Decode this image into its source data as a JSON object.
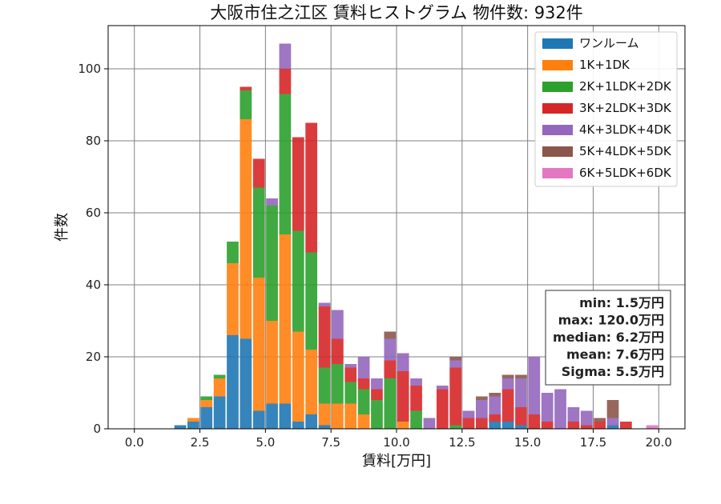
{
  "chart_data": {
    "type": "bar",
    "stacked": true,
    "title": "大阪市住之江区 賃料ヒストグラム  物件数: 932件",
    "xlabel": "賃料[万円]",
    "ylabel": "件数",
    "xlim": [
      -1.0,
      21.0
    ],
    "ylim": [
      0,
      112
    ],
    "xticks": [
      "0.0",
      "2.5",
      "5.0",
      "7.5",
      "10.0",
      "12.5",
      "15.0",
      "17.5",
      "20.0"
    ],
    "yticks": [
      "0",
      "20",
      "40",
      "60",
      "80",
      "100"
    ],
    "grid": true,
    "legend_position": "top-right",
    "bin_width": 0.5,
    "bins": [
      1.5,
      2.0,
      2.5,
      3.0,
      3.5,
      4.0,
      4.5,
      5.0,
      5.5,
      6.0,
      6.5,
      7.0,
      7.5,
      8.0,
      8.5,
      9.0,
      9.5,
      10.0,
      10.5,
      11.0,
      11.5,
      12.0,
      12.5,
      13.0,
      13.5,
      14.0,
      14.5,
      15.0,
      15.5,
      16.0,
      16.5,
      17.0,
      17.5,
      18.0,
      18.5,
      19.0,
      19.5
    ],
    "series": [
      {
        "name": "ワンルーム",
        "color": "#1f77b4",
        "values": [
          1,
          2,
          6,
          9,
          26,
          25,
          5,
          7,
          7,
          2,
          4,
          1,
          0,
          0,
          0,
          0,
          0,
          0,
          0,
          0,
          0,
          0,
          0,
          0,
          2,
          2,
          1,
          0,
          0,
          0,
          0,
          0,
          0,
          1,
          0,
          0,
          0
        ]
      },
      {
        "name": "1K+1DK",
        "color": "#ff7f0e",
        "values": [
          0,
          1,
          2,
          5,
          20,
          61,
          37,
          23,
          47,
          25,
          18,
          6,
          7,
          7,
          4,
          0,
          0,
          2,
          0,
          0,
          0,
          0,
          0,
          0,
          0,
          0,
          0,
          0,
          0,
          0,
          0,
          0,
          0,
          0,
          0,
          0,
          0
        ]
      },
      {
        "name": "2K+1LDK+2DK",
        "color": "#2ca02c",
        "values": [
          0,
          0,
          1,
          1,
          6,
          8,
          25,
          32,
          39,
          28,
          27,
          10,
          11,
          6,
          7,
          8,
          14,
          0,
          5,
          0,
          0,
          1,
          0,
          0,
          0,
          0,
          0,
          0,
          0,
          0,
          0,
          0,
          0,
          0,
          0,
          0,
          0
        ]
      },
      {
        "name": "3K+2LDK+3DK",
        "color": "#d62728",
        "values": [
          0,
          0,
          0,
          0,
          0,
          1,
          8,
          0,
          7,
          26,
          36,
          17,
          7,
          4,
          3,
          3,
          5,
          14,
          7,
          0,
          11,
          16,
          3,
          3,
          2,
          9,
          5,
          4,
          2,
          0,
          2,
          1,
          2,
          0,
          2,
          0,
          0
        ]
      },
      {
        "name": "4K+3LDK+4DK",
        "color": "#9467bd",
        "values": [
          0,
          0,
          0,
          0,
          0,
          0,
          0,
          2,
          7,
          0,
          0,
          1,
          8,
          1,
          6,
          3,
          6,
          5,
          2,
          3,
          1,
          2,
          2,
          5,
          5,
          3,
          8,
          16,
          8,
          11,
          4,
          4,
          0,
          2,
          0,
          0,
          0
        ]
      },
      {
        "name": "5K+4LDK+5DK",
        "color": "#8c564b",
        "values": [
          0,
          0,
          0,
          0,
          0,
          0,
          0,
          0,
          0,
          0,
          0,
          0,
          0,
          0,
          0,
          0,
          2,
          0,
          0,
          0,
          0,
          1,
          0,
          1,
          1,
          1,
          1,
          0,
          0,
          0,
          0,
          0,
          1,
          5,
          0,
          0,
          0
        ]
      },
      {
        "name": "6K+5LDK+6DK",
        "color": "#e377c2",
        "values": [
          0,
          0,
          0,
          0,
          0,
          0,
          0,
          0,
          0,
          0,
          0,
          0,
          0,
          0,
          0,
          0,
          0,
          0,
          0,
          0,
          0,
          0,
          0,
          0,
          0,
          0,
          0,
          0,
          0,
          0,
          0,
          0,
          0,
          0,
          0,
          0,
          1
        ]
      }
    ],
    "stats": [
      "min: 1.5万円",
      "max: 120.0万円",
      "median: 6.2万円",
      "mean: 7.6万円",
      "Sigma: 5.5万円"
    ]
  }
}
